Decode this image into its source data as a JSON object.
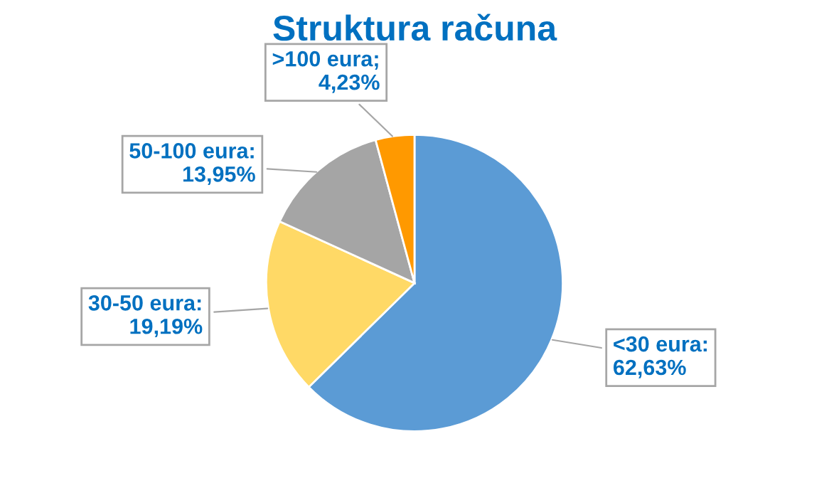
{
  "chart_data": {
    "type": "pie",
    "title": "Struktura računa",
    "categories": [
      "<30 eura",
      "30-50 eura",
      "50-100 eura",
      ">100 eura"
    ],
    "values": [
      62.63,
      19.19,
      13.95,
      4.23
    ],
    "value_labels": [
      ":\n62,63%",
      ":\n19,19%",
      ":\n13,95%",
      ";\n4,23%"
    ],
    "colors": [
      "#5b9bd5",
      "#ffd966",
      "#a5a5a5",
      "#ff9900"
    ],
    "legend": false
  }
}
